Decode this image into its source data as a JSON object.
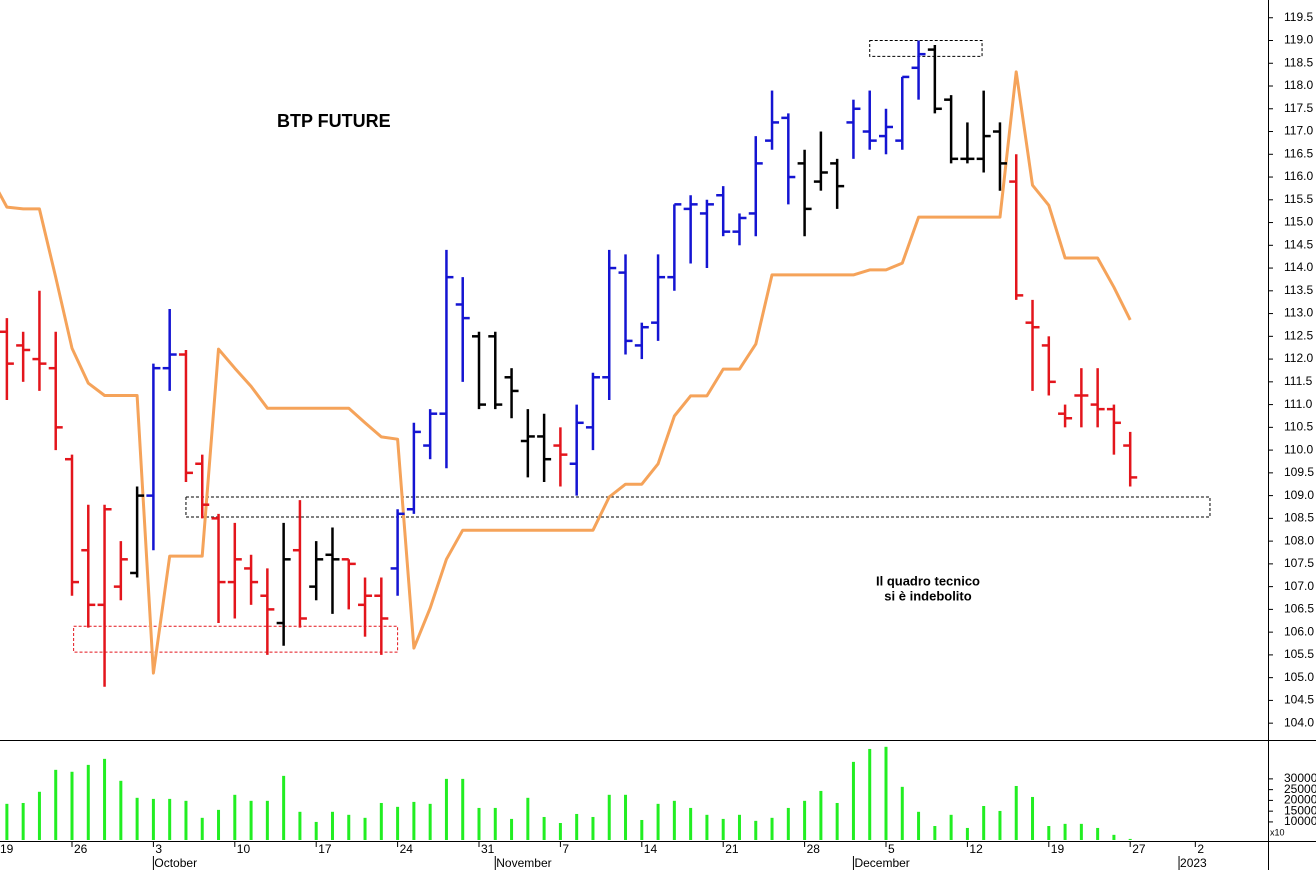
{
  "chart_data": [
    {
      "type": "ohlc",
      "title": "BTP FUTURE",
      "note": [
        "Il quadro tecnico",
        "si è indebolito"
      ],
      "note_color": "#e3151c",
      "categories": [
        "19",
        null,
        null,
        null,
        null,
        "26",
        null,
        null,
        null,
        null,
        "3",
        null,
        null,
        null,
        null,
        "10",
        null,
        null,
        null,
        null,
        "17",
        null,
        null,
        null,
        null,
        "24",
        null,
        null,
        null,
        null,
        "31",
        null,
        null,
        null,
        null,
        "7",
        null,
        null,
        null,
        null,
        "14",
        null,
        null,
        null,
        null,
        "21",
        null,
        null,
        null,
        null,
        "28",
        null,
        null,
        null,
        null,
        "5",
        null,
        null,
        null,
        null,
        "12",
        null,
        null,
        null,
        null,
        "19",
        null,
        null,
        null,
        null,
        "27",
        null,
        null,
        null,
        "2",
        null,
        null,
        null,
        null
      ],
      "months": [
        null,
        null,
        null,
        null,
        null,
        null,
        null,
        null,
        null,
        null,
        "October",
        null,
        null,
        null,
        null,
        null,
        null,
        null,
        null,
        null,
        null,
        null,
        null,
        null,
        null,
        null,
        null,
        null,
        null,
        null,
        null,
        "November",
        null,
        null,
        null,
        null,
        null,
        null,
        null,
        null,
        null,
        null,
        null,
        null,
        null,
        null,
        null,
        null,
        null,
        null,
        null,
        null,
        null,
        "December",
        null,
        null,
        null,
        null,
        null,
        null,
        null,
        null,
        null,
        null,
        null,
        null,
        null,
        null,
        null,
        null,
        null,
        null,
        null,
        "2023",
        null,
        null,
        null,
        null
      ],
      "open": [
        null,
        112.6,
        112.3,
        112.0,
        111.8,
        109.8,
        107.8,
        106.6,
        107.0,
        107.3,
        109.0,
        111.8,
        112.1,
        109.7,
        108.5,
        107.1,
        107.4,
        106.8,
        106.2,
        107.8,
        107.0,
        107.7,
        107.6,
        106.6,
        106.8,
        107.4,
        108.7,
        110.1,
        110.8,
        113.2,
        112.5,
        112.5,
        111.6,
        110.2,
        110.3,
        110.1,
        109.7,
        110.5,
        111.6,
        113.9,
        112.3,
        112.8,
        113.8,
        115.3,
        115.2,
        115.6,
        114.8,
        115.2,
        116.8,
        117.3,
        116.3,
        115.9,
        116.3,
        117.2,
        117.0,
        116.9,
        116.8,
        118.4,
        118.8,
        117.7,
        116.4,
        116.4,
        117.0,
        115.9,
        112.8,
        112.3,
        110.8,
        111.2,
        111.0,
        110.9,
        110.1,
        null,
        null,
        null,
        null,
        null,
        null,
        null,
        null
      ],
      "high": [
        null,
        112.9,
        112.6,
        113.5,
        112.6,
        109.9,
        108.8,
        108.8,
        108.0,
        109.2,
        111.9,
        113.1,
        112.2,
        109.9,
        108.6,
        108.4,
        107.7,
        107.4,
        108.4,
        108.9,
        108.0,
        108.3,
        107.6,
        107.2,
        107.2,
        108.7,
        110.6,
        110.9,
        114.4,
        113.8,
        112.6,
        112.6,
        111.8,
        110.9,
        110.8,
        110.5,
        111.0,
        111.7,
        114.4,
        114.3,
        112.8,
        114.3,
        115.4,
        115.6,
        115.5,
        115.8,
        115.2,
        116.9,
        117.9,
        117.4,
        116.6,
        117.0,
        116.4,
        117.7,
        117.9,
        117.5,
        118.2,
        119.0,
        118.9,
        117.8,
        117.2,
        117.9,
        117.2,
        116.5,
        113.3,
        112.5,
        111.0,
        111.8,
        111.8,
        111.0,
        110.4,
        null,
        null,
        null,
        null,
        null,
        null,
        null,
        null
      ],
      "low": [
        null,
        111.1,
        111.5,
        111.3,
        110.0,
        106.8,
        106.1,
        104.8,
        106.7,
        107.2,
        107.8,
        111.3,
        109.3,
        108.5,
        106.2,
        106.3,
        106.6,
        105.5,
        105.7,
        106.1,
        106.7,
        106.4,
        106.5,
        105.9,
        105.5,
        106.8,
        108.6,
        109.8,
        109.6,
        111.5,
        110.9,
        110.9,
        110.7,
        109.4,
        109.3,
        109.2,
        109.0,
        110.0,
        111.1,
        112.1,
        112.0,
        112.4,
        113.5,
        114.1,
        114.0,
        114.7,
        114.5,
        114.7,
        116.6,
        115.4,
        114.7,
        115.7,
        115.3,
        116.4,
        116.6,
        116.5,
        116.6,
        117.7,
        117.4,
        116.3,
        116.3,
        116.1,
        115.7,
        113.3,
        111.3,
        111.2,
        110.5,
        110.5,
        110.5,
        109.9,
        109.2,
        null,
        null,
        null,
        null,
        null,
        null,
        null,
        null
      ],
      "close": [
        null,
        111.9,
        112.2,
        111.9,
        110.5,
        107.1,
        106.6,
        108.7,
        107.6,
        109.0,
        111.8,
        112.1,
        109.5,
        108.8,
        107.1,
        107.6,
        107.1,
        106.5,
        107.6,
        106.3,
        107.6,
        107.6,
        107.5,
        106.8,
        106.3,
        108.6,
        110.4,
        110.8,
        113.8,
        112.9,
        111.0,
        111.0,
        111.3,
        110.3,
        109.8,
        109.9,
        110.6,
        111.6,
        114.0,
        112.4,
        112.7,
        113.8,
        115.4,
        115.4,
        115.4,
        114.8,
        115.1,
        116.3,
        117.2,
        116.0,
        115.3,
        116.1,
        115.8,
        117.5,
        116.8,
        117.1,
        118.2,
        118.7,
        117.5,
        116.4,
        116.4,
        116.9,
        116.3,
        113.4,
        112.7,
        111.5,
        110.7,
        111.2,
        110.9,
        110.6,
        109.4,
        null,
        null,
        null,
        null,
        null,
        null,
        null,
        null
      ],
      "bar_colors": [
        null,
        "#e3151c",
        "#e3151c",
        "#e3151c",
        "#e3151c",
        "#e3151c",
        "#e3151c",
        "#e3151c",
        "#e3151c",
        "#000000",
        "#1414d2",
        "#1414d2",
        "#e3151c",
        "#e3151c",
        "#e3151c",
        "#e3151c",
        "#e3151c",
        "#e3151c",
        "#000000",
        "#e3151c",
        "#000000",
        "#000000",
        "#e3151c",
        "#e3151c",
        "#e3151c",
        "#1414d2",
        "#1414d2",
        "#1414d2",
        "#1414d2",
        "#1414d2",
        "#000000",
        "#000000",
        "#000000",
        "#000000",
        "#000000",
        "#e3151c",
        "#1414d2",
        "#1414d2",
        "#1414d2",
        "#1414d2",
        "#1414d2",
        "#1414d2",
        "#1414d2",
        "#1414d2",
        "#1414d2",
        "#1414d2",
        "#1414d2",
        "#1414d2",
        "#1414d2",
        "#1414d2",
        "#000000",
        "#000000",
        "#000000",
        "#1414d2",
        "#1414d2",
        "#1414d2",
        "#1414d2",
        "#1414d2",
        "#000000",
        "#000000",
        "#000000",
        "#000000",
        "#000000",
        "#e3151c",
        "#e3151c",
        "#e3151c",
        "#e3151c",
        "#e3151c",
        "#e3151c",
        "#e3151c",
        "#e3151c",
        null,
        null,
        null,
        null,
        null,
        null,
        null,
        null
      ],
      "line": {
        "color": "#f5a35a",
        "values": [
          116.0,
          115.34,
          115.3,
          115.3,
          113.8,
          112.24,
          111.47,
          111.2,
          111.2,
          111.2,
          105.1,
          107.67,
          107.67,
          107.67,
          112.22,
          111.8,
          111.4,
          110.92,
          110.92,
          110.92,
          110.92,
          110.92,
          110.92,
          110.6,
          110.29,
          110.24,
          105.65,
          106.53,
          107.6,
          108.24,
          108.24,
          108.24,
          108.24,
          108.24,
          108.24,
          108.24,
          108.24,
          108.24,
          108.97,
          109.25,
          109.25,
          109.7,
          110.75,
          111.19,
          111.19,
          111.78,
          111.78,
          112.33,
          113.85,
          113.85,
          113.85,
          113.85,
          113.85,
          113.85,
          113.96,
          113.96,
          114.11,
          115.12,
          115.12,
          115.12,
          115.12,
          115.12,
          115.12,
          118.31,
          115.82,
          115.38,
          114.22,
          114.22,
          114.22,
          113.58,
          112.86,
          null,
          null,
          null,
          null,
          null,
          null,
          null,
          null
        ]
      },
      "zones": [
        {
          "low": 118.65,
          "high": 119.0,
          "start": 54,
          "end": 60.9,
          "color": "#000000"
        },
        {
          "low": 108.53,
          "high": 108.97,
          "start": 12,
          "end": 74.9,
          "color": "#000000"
        },
        {
          "low": 105.56,
          "high": 106.13,
          "start": 5.1,
          "end": 25,
          "color": "#e3151c"
        }
      ],
      "ylim": [
        103.63,
        119.89
      ],
      "yticks": [
        {
          "value": 104,
          "label": "104.0"
        },
        104.5,
        {
          "value": 105,
          "label": "105.0"
        },
        105.5,
        {
          "value": 106,
          "label": "106.0"
        },
        106.5,
        {
          "value": 107,
          "label": "107.0"
        },
        107.5,
        {
          "value": 108,
          "label": "108.0"
        },
        108.5,
        {
          "value": 109,
          "label": "109.0"
        },
        109.5,
        {
          "value": 110,
          "label": "110.0"
        },
        110.5,
        {
          "value": 111,
          "label": "111.0"
        },
        111.5,
        {
          "value": 112,
          "label": "112.0"
        },
        112.5,
        {
          "value": 113,
          "label": "113.0"
        },
        113.5,
        {
          "value": 114,
          "label": "114.0"
        },
        114.5,
        {
          "value": 115,
          "label": "115.0"
        },
        115.5,
        {
          "value": 116,
          "label": "116.0"
        },
        116.5,
        {
          "value": 117,
          "label": "117.0"
        },
        117.5,
        {
          "value": 118,
          "label": "118.0"
        },
        118.5,
        {
          "value": 119,
          "label": "119.0"
        },
        119.5
      ]
    },
    {
      "type": "bar",
      "color": "#22ee22",
      "unit": "x10",
      "values": [
        null,
        18400,
        18800,
        24000,
        34200,
        33300,
        36500,
        39300,
        29100,
        21200,
        20700,
        20700,
        19800,
        11900,
        15600,
        22600,
        19800,
        19800,
        31400,
        14700,
        10000,
        14700,
        13300,
        11900,
        18800,
        17000,
        19300,
        18400,
        30000,
        30000,
        16500,
        16500,
        11400,
        21200,
        12300,
        9500,
        13700,
        12300,
        22600,
        22600,
        10900,
        18400,
        19800,
        16500,
        13300,
        11400,
        13300,
        10500,
        11900,
        16500,
        19800,
        24400,
        18800,
        37900,
        43900,
        44900,
        26300,
        14700,
        8100,
        13300,
        7200,
        17400,
        15100,
        26700,
        21600,
        8100,
        9100,
        9100,
        7200,
        4000,
        2100,
        null,
        null,
        null,
        null,
        null,
        null,
        null,
        null
      ],
      "ylim": [
        1600,
        47600
      ],
      "yticks": [
        10000,
        15000,
        20000,
        25000,
        30000
      ]
    }
  ]
}
